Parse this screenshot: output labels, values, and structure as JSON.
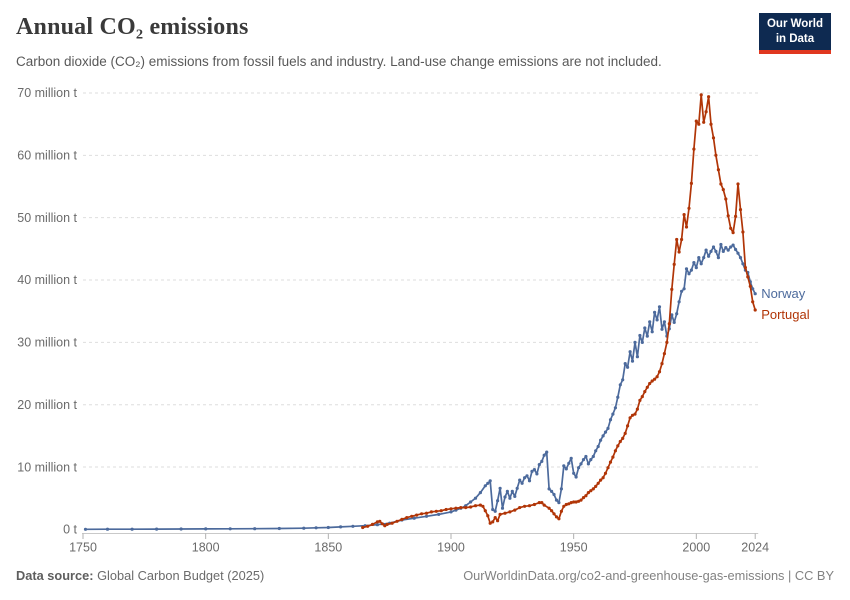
{
  "header": {
    "title": "Annual CO₂ emissions",
    "subtitle": "Carbon dioxide (CO₂) emissions from fossil fuels and industry. Land-use change emissions are not included."
  },
  "logo": {
    "line1": "Our World",
    "line2": "in Data",
    "bg_color": "#0e2a51",
    "accent_color": "#e0371f"
  },
  "chart_data": {
    "type": "line",
    "title": "Annual CO₂ emissions",
    "xlabel": "",
    "ylabel": "",
    "x_axis": {
      "range": [
        1750,
        2024
      ],
      "ticks": [
        1750,
        1800,
        1850,
        1900,
        1950,
        2000,
        2024
      ]
    },
    "y_axis": {
      "range": [
        0,
        70
      ],
      "ticks": [
        0,
        10,
        20,
        30,
        40,
        50,
        60,
        70
      ],
      "labels": [
        "0 t",
        "10 million t",
        "20 million t",
        "30 million t",
        "40 million t",
        "50 million t",
        "60 million t",
        "70 million t"
      ]
    },
    "grid": "horizontal-dashed",
    "legend_position": "right-of-line-end",
    "series": [
      {
        "name": "Norway",
        "color": "#4c6a9c",
        "points": [
          [
            1751,
            0.02
          ],
          [
            1760,
            0.03
          ],
          [
            1770,
            0.04
          ],
          [
            1780,
            0.05
          ],
          [
            1790,
            0.06
          ],
          [
            1800,
            0.08
          ],
          [
            1810,
            0.1
          ],
          [
            1820,
            0.12
          ],
          [
            1830,
            0.15
          ],
          [
            1840,
            0.2
          ],
          [
            1845,
            0.25
          ],
          [
            1850,
            0.3
          ],
          [
            1855,
            0.4
          ],
          [
            1860,
            0.5
          ],
          [
            1865,
            0.6
          ],
          [
            1870,
            0.75
          ],
          [
            1875,
            1.0
          ],
          [
            1880,
            1.5
          ],
          [
            1885,
            1.8
          ],
          [
            1890,
            2.1
          ],
          [
            1895,
            2.4
          ],
          [
            1900,
            2.8
          ],
          [
            1902,
            3.1
          ],
          [
            1904,
            3.4
          ],
          [
            1906,
            3.8
          ],
          [
            1908,
            4.4
          ],
          [
            1910,
            5.0
          ],
          [
            1912,
            5.9
          ],
          [
            1914,
            7.0
          ],
          [
            1915,
            7.4
          ],
          [
            1916,
            7.8
          ],
          [
            1917,
            3.2
          ],
          [
            1918,
            2.9
          ],
          [
            1919,
            4.6
          ],
          [
            1920,
            6.6
          ],
          [
            1921,
            3.4
          ],
          [
            1922,
            5.2
          ],
          [
            1923,
            6.1
          ],
          [
            1924,
            5.0
          ],
          [
            1925,
            6.1
          ],
          [
            1926,
            5.3
          ],
          [
            1927,
            6.6
          ],
          [
            1928,
            7.9
          ],
          [
            1929,
            7.4
          ],
          [
            1930,
            8.3
          ],
          [
            1931,
            8.6
          ],
          [
            1932,
            7.8
          ],
          [
            1933,
            9.3
          ],
          [
            1934,
            9.6
          ],
          [
            1935,
            8.9
          ],
          [
            1936,
            10.4
          ],
          [
            1937,
            10.9
          ],
          [
            1938,
            11.9
          ],
          [
            1939,
            12.4
          ],
          [
            1940,
            6.5
          ],
          [
            1941,
            6.1
          ],
          [
            1942,
            5.6
          ],
          [
            1943,
            4.7
          ],
          [
            1944,
            4.3
          ],
          [
            1945,
            6.5
          ],
          [
            1946,
            10.2
          ],
          [
            1947,
            9.7
          ],
          [
            1948,
            10.6
          ],
          [
            1949,
            11.4
          ],
          [
            1950,
            9.0
          ],
          [
            1951,
            8.4
          ],
          [
            1952,
            9.9
          ],
          [
            1953,
            10.5
          ],
          [
            1954,
            11.2
          ],
          [
            1955,
            11.7
          ],
          [
            1956,
            10.5
          ],
          [
            1957,
            11.2
          ],
          [
            1958,
            11.7
          ],
          [
            1959,
            12.6
          ],
          [
            1960,
            13.3
          ],
          [
            1961,
            14.3
          ],
          [
            1962,
            15.0
          ],
          [
            1963,
            15.6
          ],
          [
            1964,
            16.2
          ],
          [
            1965,
            17.6
          ],
          [
            1966,
            18.5
          ],
          [
            1967,
            19.5
          ],
          [
            1968,
            21.2
          ],
          [
            1969,
            23.2
          ],
          [
            1970,
            24.0
          ],
          [
            1971,
            26.6
          ],
          [
            1972,
            26.0
          ],
          [
            1973,
            28.5
          ],
          [
            1974,
            27.0
          ],
          [
            1975,
            30.0
          ],
          [
            1976,
            27.7
          ],
          [
            1977,
            31.1
          ],
          [
            1978,
            30.0
          ],
          [
            1979,
            32.3
          ],
          [
            1980,
            31.0
          ],
          [
            1981,
            33.3
          ],
          [
            1982,
            31.7
          ],
          [
            1983,
            34.8
          ],
          [
            1984,
            33.6
          ],
          [
            1985,
            35.7
          ],
          [
            1986,
            32.1
          ],
          [
            1987,
            33.3
          ],
          [
            1988,
            31.0
          ],
          [
            1989,
            32.2
          ],
          [
            1990,
            34.4
          ],
          [
            1991,
            33.2
          ],
          [
            1992,
            34.6
          ],
          [
            1993,
            36.5
          ],
          [
            1994,
            38.2
          ],
          [
            1995,
            38.6
          ],
          [
            1996,
            41.8
          ],
          [
            1997,
            41.0
          ],
          [
            1998,
            41.6
          ],
          [
            1999,
            42.8
          ],
          [
            2000,
            42.0
          ],
          [
            2001,
            43.6
          ],
          [
            2002,
            42.6
          ],
          [
            2003,
            43.6
          ],
          [
            2004,
            44.8
          ],
          [
            2005,
            43.8
          ],
          [
            2006,
            44.6
          ],
          [
            2007,
            45.3
          ],
          [
            2008,
            44.6
          ],
          [
            2009,
            43.6
          ],
          [
            2010,
            45.7
          ],
          [
            2011,
            44.6
          ],
          [
            2012,
            45.2
          ],
          [
            2013,
            44.8
          ],
          [
            2014,
            45.3
          ],
          [
            2015,
            45.6
          ],
          [
            2016,
            44.9
          ],
          [
            2017,
            44.3
          ],
          [
            2018,
            43.6
          ],
          [
            2019,
            42.6
          ],
          [
            2020,
            41.6
          ],
          [
            2021,
            41.2
          ],
          [
            2022,
            39.7
          ],
          [
            2023,
            38.6
          ],
          [
            2024,
            37.8
          ]
        ]
      },
      {
        "name": "Portugal",
        "color": "#b13507",
        "points": [
          [
            1864,
            0.3
          ],
          [
            1866,
            0.5
          ],
          [
            1868,
            0.8
          ],
          [
            1870,
            1.2
          ],
          [
            1871,
            1.3
          ],
          [
            1872,
            0.9
          ],
          [
            1873,
            0.6
          ],
          [
            1874,
            0.8
          ],
          [
            1876,
            1.0
          ],
          [
            1878,
            1.3
          ],
          [
            1880,
            1.6
          ],
          [
            1882,
            1.9
          ],
          [
            1884,
            2.1
          ],
          [
            1886,
            2.3
          ],
          [
            1888,
            2.5
          ],
          [
            1890,
            2.6
          ],
          [
            1892,
            2.8
          ],
          [
            1894,
            2.9
          ],
          [
            1896,
            3.0
          ],
          [
            1898,
            3.2
          ],
          [
            1900,
            3.3
          ],
          [
            1902,
            3.4
          ],
          [
            1904,
            3.5
          ],
          [
            1906,
            3.5
          ],
          [
            1908,
            3.6
          ],
          [
            1910,
            3.8
          ],
          [
            1912,
            3.9
          ],
          [
            1913,
            3.7
          ],
          [
            1914,
            3.0
          ],
          [
            1915,
            2.2
          ],
          [
            1916,
            1.0
          ],
          [
            1917,
            1.2
          ],
          [
            1918,
            1.9
          ],
          [
            1919,
            1.4
          ],
          [
            1920,
            2.4
          ],
          [
            1922,
            2.6
          ],
          [
            1924,
            2.8
          ],
          [
            1926,
            3.1
          ],
          [
            1928,
            3.5
          ],
          [
            1930,
            3.7
          ],
          [
            1932,
            3.8
          ],
          [
            1934,
            4.0
          ],
          [
            1936,
            4.3
          ],
          [
            1937,
            4.3
          ],
          [
            1938,
            3.9
          ],
          [
            1940,
            3.4
          ],
          [
            1941,
            3.0
          ],
          [
            1942,
            2.5
          ],
          [
            1943,
            2.0
          ],
          [
            1944,
            1.7
          ],
          [
            1945,
            2.9
          ],
          [
            1946,
            3.7
          ],
          [
            1947,
            4.0
          ],
          [
            1948,
            4.1
          ],
          [
            1949,
            4.3
          ],
          [
            1950,
            4.4
          ],
          [
            1951,
            4.4
          ],
          [
            1952,
            4.5
          ],
          [
            1953,
            4.7
          ],
          [
            1954,
            5.1
          ],
          [
            1955,
            5.4
          ],
          [
            1956,
            5.9
          ],
          [
            1957,
            6.2
          ],
          [
            1958,
            6.5
          ],
          [
            1959,
            6.9
          ],
          [
            1960,
            7.4
          ],
          [
            1961,
            7.9
          ],
          [
            1962,
            8.3
          ],
          [
            1963,
            9.0
          ],
          [
            1964,
            9.9
          ],
          [
            1965,
            10.8
          ],
          [
            1966,
            11.6
          ],
          [
            1967,
            12.6
          ],
          [
            1968,
            13.4
          ],
          [
            1969,
            14.1
          ],
          [
            1970,
            14.6
          ],
          [
            1971,
            15.4
          ],
          [
            1972,
            16.6
          ],
          [
            1973,
            17.9
          ],
          [
            1974,
            18.3
          ],
          [
            1975,
            18.5
          ],
          [
            1976,
            19.3
          ],
          [
            1977,
            20.7
          ],
          [
            1978,
            21.3
          ],
          [
            1979,
            22.1
          ],
          [
            1980,
            22.8
          ],
          [
            1981,
            23.4
          ],
          [
            1982,
            23.8
          ],
          [
            1983,
            24.1
          ],
          [
            1984,
            24.5
          ],
          [
            1985,
            25.3
          ],
          [
            1986,
            26.6
          ],
          [
            1987,
            28.2
          ],
          [
            1988,
            30.0
          ],
          [
            1989,
            33.0
          ],
          [
            1990,
            38.5
          ],
          [
            1991,
            42.5
          ],
          [
            1992,
            46.5
          ],
          [
            1993,
            44.5
          ],
          [
            1994,
            46.5
          ],
          [
            1995,
            50.5
          ],
          [
            1996,
            48.5
          ],
          [
            1997,
            51.5
          ],
          [
            1998,
            55.5
          ],
          [
            1999,
            61.0
          ],
          [
            2000,
            65.5
          ],
          [
            2001,
            65.0
          ],
          [
            2002,
            69.7
          ],
          [
            2003,
            65.3
          ],
          [
            2004,
            67.0
          ],
          [
            2005,
            69.4
          ],
          [
            2006,
            65.0
          ],
          [
            2007,
            62.8
          ],
          [
            2008,
            60.0
          ],
          [
            2009,
            57.7
          ],
          [
            2010,
            55.4
          ],
          [
            2011,
            54.5
          ],
          [
            2012,
            53.0
          ],
          [
            2013,
            50.3
          ],
          [
            2014,
            48.3
          ],
          [
            2015,
            47.6
          ],
          [
            2016,
            50.2
          ],
          [
            2017,
            55.4
          ],
          [
            2018,
            51.3
          ],
          [
            2019,
            47.7
          ],
          [
            2020,
            42.0
          ],
          [
            2021,
            40.5
          ],
          [
            2022,
            39.0
          ],
          [
            2023,
            36.5
          ],
          [
            2024,
            35.2
          ]
        ]
      }
    ]
  },
  "footer": {
    "source_label": "Data source:",
    "source": "Global Carbon Budget (2025)",
    "license": "OurWorldinData.org/co2-and-greenhouse-gas-emissions | CC BY"
  }
}
